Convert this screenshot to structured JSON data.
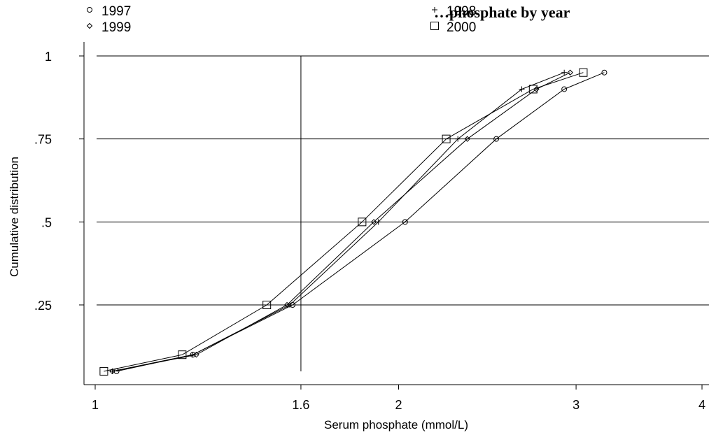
{
  "chart_data": {
    "type": "line",
    "title": "…phosphate by year",
    "xlabel": "Serum phosphate (mmol/L)",
    "ylabel": "Cumulative distribution",
    "xlim": [
      1,
      4
    ],
    "ylim": [
      0.05,
      1
    ],
    "x_scale": "log",
    "x_ticks": [
      1,
      1.6,
      2,
      3,
      4
    ],
    "x_tick_labels": [
      "1",
      "1.6",
      "2",
      "3",
      "4"
    ],
    "y_ticks": [
      0.25,
      0.5,
      0.75,
      1
    ],
    "y_tick_labels": [
      ".25",
      ".5",
      ".75",
      "1"
    ],
    "grid": "horizontal",
    "reference_line_x": 1.6,
    "legend_position": "top",
    "y": [
      0.05,
      0.1,
      0.25,
      0.5,
      0.75,
      0.9,
      0.95
    ],
    "series": [
      {
        "name": "1997",
        "marker": "circle",
        "x": [
          1.05,
          1.25,
          1.57,
          2.03,
          2.5,
          2.92,
          3.2
        ]
      },
      {
        "name": "1998",
        "marker": "plus",
        "x": [
          1.04,
          1.25,
          1.56,
          1.91,
          2.29,
          2.65,
          2.92
        ]
      },
      {
        "name": "1999",
        "marker": "diamond",
        "x": [
          1.04,
          1.26,
          1.55,
          1.89,
          2.34,
          2.74,
          2.96
        ]
      },
      {
        "name": "2000",
        "marker": "square",
        "x": [
          1.02,
          1.22,
          1.48,
          1.84,
          2.23,
          2.72,
          3.05
        ]
      }
    ]
  }
}
